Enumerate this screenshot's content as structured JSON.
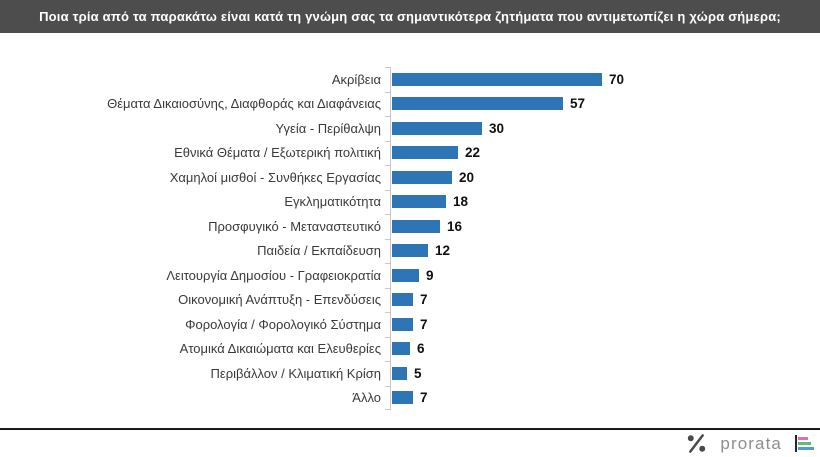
{
  "header": {
    "title": "Ποια τρία από τα παρακάτω είναι κατά τη γνώμη σας τα σημαντικότερα ζητήματα που αντιμετωπίζει η χώρα σήμερα;"
  },
  "chart_data": {
    "type": "bar",
    "orientation": "horizontal",
    "title": "",
    "categories": [
      "Ακρίβεια",
      "Θέματα Δικαιοσύνης, Διαφθοράς και Διαφάνειας",
      "Υγεία - Περίθαλψη",
      "Εθνικά Θέματα / Εξωτερική πολιτική",
      "Χαμηλοί μισθοί - Συνθήκες Εργασίας",
      "Εγκληματικότητα",
      "Προσφυγικό - Μεταναστευτικό",
      "Παιδεία / Εκπαίδευση",
      "Λειτουργία Δημοσίου - Γραφειοκρατία",
      "Οικονομική Ανάπτυξη - Επενδύσεις",
      "Φορολογία / Φορολογικό Σύστημα",
      "Ατομικά Δικαιώματα και Ελευθερίες",
      "Περιβάλλον / Κλιματική Κρίση",
      "Άλλο"
    ],
    "values": [
      70,
      57,
      30,
      22,
      20,
      18,
      16,
      12,
      9,
      7,
      7,
      6,
      5,
      7
    ],
    "value_labels_shown": true,
    "xlim": [
      0,
      75
    ],
    "grid": false,
    "legend": "none",
    "bar_color": "#2E75B6",
    "axis_color": "#C8C8C8"
  },
  "footer": {
    "brand": "prorata",
    "percent_mark": "%",
    "logo_bar_colors": [
      "#EE67A6",
      "#5FBE6E",
      "#4F9CD6"
    ],
    "logo_bar_widths": [
      10,
      13,
      16
    ]
  },
  "colors": {
    "header_bg": "#4D4D4D",
    "header_text": "#FFFFFF",
    "divider": "#1A1A25",
    "category_label": "#3A3A3A",
    "value_label": "#101010",
    "brand_text": "#8E8E8E",
    "percent_mark": "#4A4A4A"
  }
}
